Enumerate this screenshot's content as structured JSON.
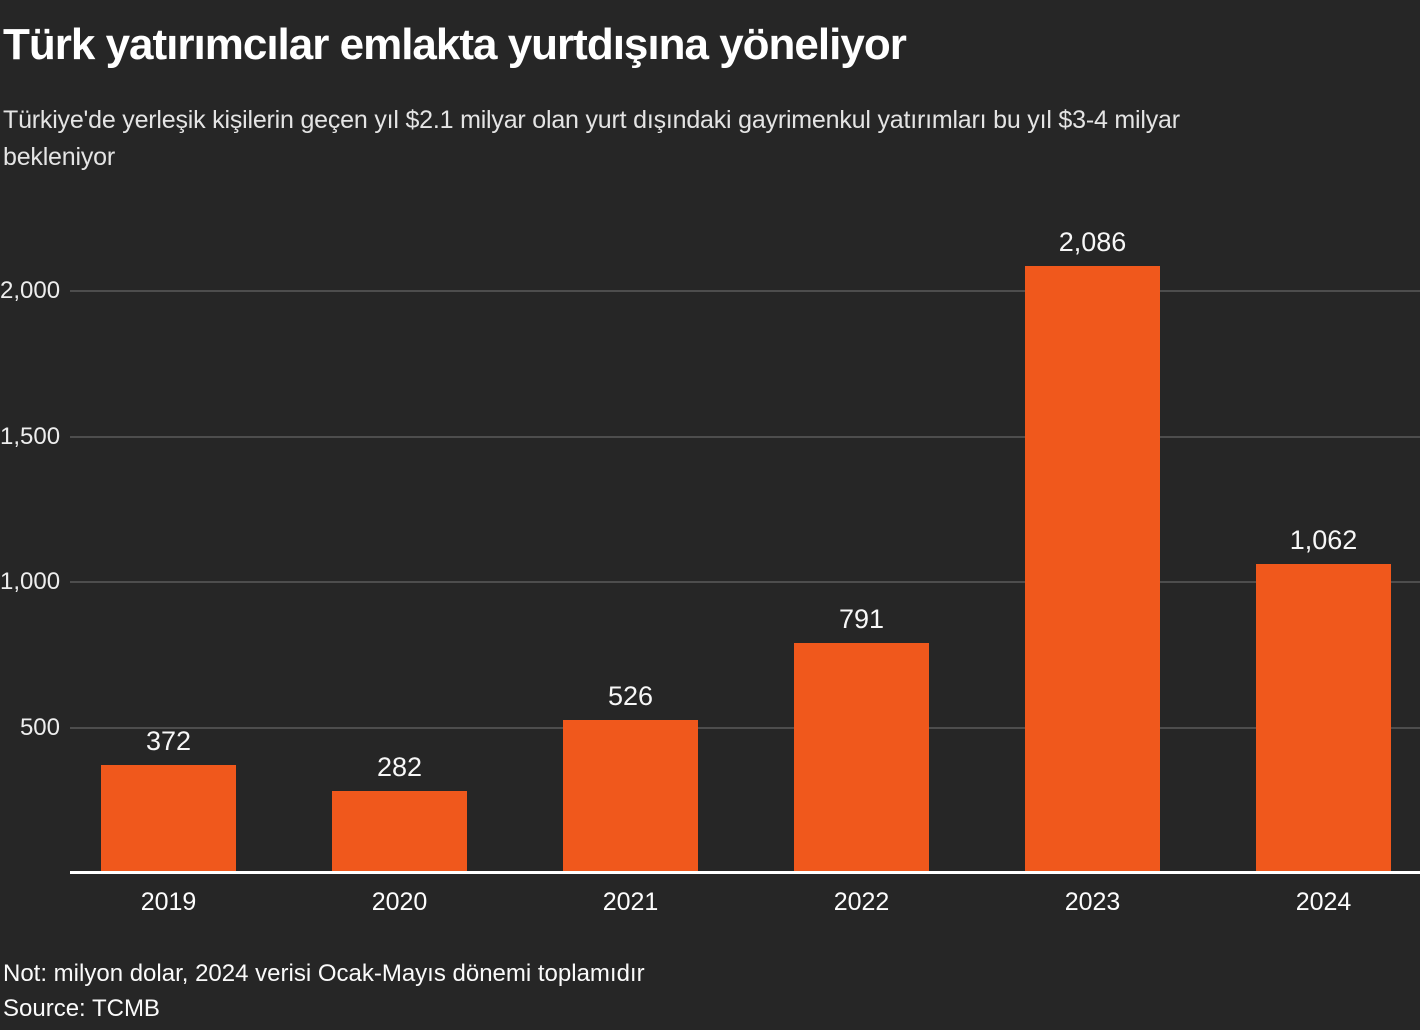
{
  "chart_data": {
    "type": "bar",
    "title": "Türk yatırımcılar emlakta yurtdışına yöneliyor",
    "subtitle": "Türkiye'de yerleşik kişilerin geçen yıl $2.1 milyar olan yurt dışındaki gayrimenkul yatırımları bu yıl $3-4 milyar bekleniyor",
    "subtitle_lines": [
      "Türkiye'de yerleşik kişilerin geçen yıl $2.1 milyar olan yurt dışındaki gayrimenkul yatırımları bu yıl $3-4 milyar",
      "bekleniyor"
    ],
    "categories": [
      "2019",
      "2020",
      "2021",
      "2022",
      "2023",
      "2024"
    ],
    "values": [
      372,
      282,
      526,
      791,
      2086,
      1062
    ],
    "value_labels": [
      "372",
      "282",
      "526",
      "791",
      "2,086",
      "1,062"
    ],
    "xlabel": "",
    "ylabel": "",
    "y_ticks": [
      500,
      1000,
      1500,
      2000
    ],
    "y_tick_labels": [
      "500",
      "1,000",
      "1,500",
      "2,000"
    ],
    "ylim": [
      0,
      2150
    ],
    "grid": "horizontal",
    "legend": "none",
    "note": "Not: milyon dolar, 2024 verisi Ocak-Mayıs dönemi toplamıdır",
    "source": "Source: TCMB"
  },
  "colors": {
    "background": "#262626",
    "bar": "#f0581c",
    "gridline": "#4d4d4d",
    "baseline": "#ffffff",
    "title_text": "#ffffff",
    "subtitle_text": "#e4e4e4",
    "tick_text": "#ededed",
    "value_text": "#f7f7f7"
  }
}
